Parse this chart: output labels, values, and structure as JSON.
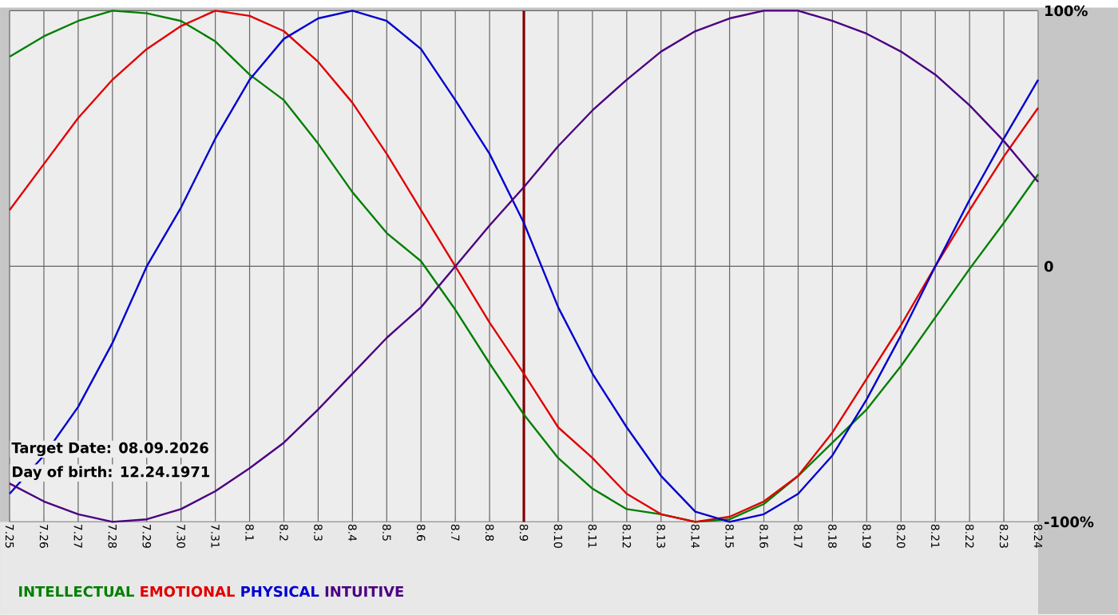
{
  "chart_data": {
    "type": "line",
    "categories": [
      "7.25",
      "7.26",
      "7.27",
      "7.28",
      "7.29",
      "7.30",
      "7.31",
      "8.1",
      "8.2",
      "8.3",
      "8.4",
      "8.5",
      "8.6",
      "8.7",
      "8.8",
      "8.9",
      "8.10",
      "8.11",
      "8.12",
      "8.13",
      "8.14",
      "8.15",
      "8.16",
      "8.17",
      "8.18",
      "8.19",
      "8.20",
      "8.21",
      "8.22",
      "8.23",
      "8.24"
    ],
    "series": [
      {
        "name": "INTELLECTUAL",
        "color": "#007f00",
        "values": [
          82,
          90,
          96,
          100,
          99,
          96,
          88,
          75,
          65,
          48,
          29,
          13,
          2,
          -17,
          -38,
          -58,
          -75,
          -87,
          -95,
          -97,
          -100,
          -99,
          -93,
          -82,
          -69,
          -56,
          -39,
          -20,
          -1,
          17,
          36
        ]
      },
      {
        "name": "EMOTIONAL",
        "color": "#e00000",
        "values": [
          22,
          40,
          58,
          73,
          85,
          94,
          100,
          98,
          92,
          80,
          64,
          44,
          22,
          0,
          -22,
          -42,
          -63,
          -75,
          -89,
          -97,
          -100,
          -98,
          -92,
          -82,
          -65,
          -44,
          -23,
          0,
          22,
          43,
          62
        ]
      },
      {
        "name": "PHYSICAL",
        "color": "#0000d0",
        "values": [
          -89,
          -74,
          -55,
          -30,
          0,
          23,
          50,
          73,
          89,
          97,
          100,
          96,
          85,
          65,
          44,
          17,
          -16,
          -42,
          -63,
          -82,
          -96,
          -100,
          -97,
          -89,
          -74,
          -52,
          -27,
          0,
          26,
          50,
          73
        ]
      },
      {
        "name": "INTUITIVE",
        "color": "#4b0082",
        "values": [
          -85,
          -92,
          -97,
          -100,
          -99,
          -95,
          -88,
          -79,
          -69,
          -56,
          -42,
          -28,
          -16,
          0,
          16,
          31,
          47,
          61,
          73,
          84,
          92,
          97,
          100,
          100,
          96,
          91,
          84,
          75,
          63,
          49,
          33
        ]
      }
    ],
    "ylim": [
      -100,
      100
    ],
    "yticks": [
      {
        "value": -100,
        "label": "-100%"
      },
      0,
      {
        "value": 100,
        "label": "100%"
      }
    ],
    "grid": true,
    "legend": "bottom left",
    "marker": "none",
    "line_style": "solid",
    "ref_lines": [
      {
        "axis": "x",
        "value": "8.9",
        "color": "#800000"
      }
    ],
    "annotations": [
      "Target Date: 08.09.2026",
      "Day of birth: 12.24.1971"
    ]
  }
}
